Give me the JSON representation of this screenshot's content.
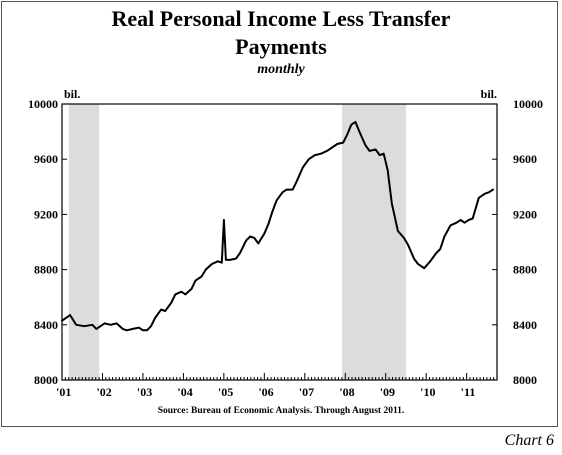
{
  "chart_data": {
    "type": "line",
    "title_line1": "Real Personal Income Less Transfer",
    "title_line2": "Payments",
    "subtitle": "monthly",
    "source": "Source: Bureau of Economic Analysis. Through August 2011.",
    "chart_label": "Chart 6",
    "left_unit": "bil.",
    "right_unit": "bil.",
    "ylim": [
      8000,
      10000
    ],
    "y_ticks": [
      8000,
      8400,
      8800,
      9200,
      9600,
      10000
    ],
    "x_range": [
      2001.0,
      2011.75
    ],
    "x_ticks": [
      {
        "t": 2001,
        "label": "'01"
      },
      {
        "t": 2002,
        "label": "'02"
      },
      {
        "t": 2003,
        "label": "'03"
      },
      {
        "t": 2004,
        "label": "'04"
      },
      {
        "t": 2005,
        "label": "'05"
      },
      {
        "t": 2006,
        "label": "'06"
      },
      {
        "t": 2007,
        "label": "'07"
      },
      {
        "t": 2008,
        "label": "'08"
      },
      {
        "t": 2009,
        "label": "'09"
      },
      {
        "t": 2010,
        "label": "'10"
      },
      {
        "t": 2011,
        "label": "'11"
      }
    ],
    "recessions": [
      {
        "start": 2001.17,
        "end": 2001.92
      },
      {
        "start": 2007.92,
        "end": 2009.5
      }
    ],
    "series": [
      {
        "name": "",
        "color": "#000000",
        "x": [
          2001.0,
          2001.2,
          2001.35,
          2001.55,
          2001.75,
          2001.85,
          2002.05,
          2002.2,
          2002.35,
          2002.5,
          2002.6,
          2002.75,
          2002.9,
          2003.0,
          2003.1,
          2003.2,
          2003.3,
          2003.45,
          2003.55,
          2003.7,
          2003.8,
          2003.95,
          2004.05,
          2004.2,
          2004.3,
          2004.45,
          2004.55,
          2004.7,
          2004.85,
          2004.95,
          2005.0,
          2005.05,
          2005.15,
          2005.3,
          2005.4,
          2005.55,
          2005.65,
          2005.75,
          2005.85,
          2006.0,
          2006.1,
          2006.2,
          2006.3,
          2006.45,
          2006.55,
          2006.7,
          2006.8,
          2006.95,
          2007.1,
          2007.25,
          2007.4,
          2007.55,
          2007.65,
          2007.8,
          2007.95,
          2008.05,
          2008.15,
          2008.25,
          2008.35,
          2008.5,
          2008.6,
          2008.75,
          2008.85,
          2008.95,
          2009.0,
          2009.05,
          2009.15,
          2009.3,
          2009.45,
          2009.55,
          2009.7,
          2009.8,
          2009.95,
          2010.1,
          2010.25,
          2010.35,
          2010.45,
          2010.6,
          2010.75,
          2010.85,
          2010.95,
          2011.05,
          2011.15,
          2011.3,
          2011.45,
          2011.55,
          2011.65
        ],
        "values": [
          8430,
          8470,
          8400,
          8390,
          8400,
          8370,
          8410,
          8400,
          8410,
          8370,
          8360,
          8370,
          8380,
          8360,
          8360,
          8390,
          8450,
          8510,
          8500,
          8560,
          8620,
          8640,
          8620,
          8660,
          8720,
          8750,
          8800,
          8840,
          8860,
          8850,
          9160,
          8870,
          8870,
          8880,
          8920,
          9010,
          9040,
          9030,
          8990,
          9060,
          9130,
          9220,
          9300,
          9360,
          9380,
          9380,
          9440,
          9540,
          9600,
          9630,
          9640,
          9660,
          9680,
          9710,
          9720,
          9780,
          9850,
          9870,
          9800,
          9700,
          9660,
          9670,
          9630,
          9640,
          9580,
          9520,
          9280,
          9080,
          9030,
          8980,
          8880,
          8840,
          8810,
          8860,
          8920,
          8950,
          9040,
          9120,
          9140,
          9160,
          9140,
          9160,
          9170,
          9320,
          9350,
          9360,
          9380
        ]
      }
    ]
  }
}
